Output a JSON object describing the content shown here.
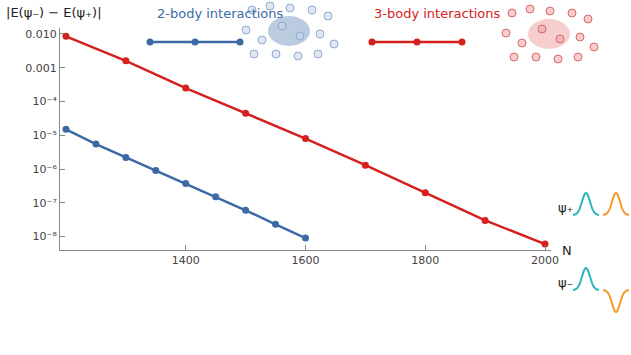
{
  "chart_data": {
    "type": "line",
    "log": "y",
    "grid": false,
    "marker": "circle",
    "x_label": "N",
    "y_label": "|E(ψ₋) − E(ψ₊)|",
    "annotations": [
      "ψ₊",
      "ψ₋"
    ],
    "xlim": [
      1190,
      2010
    ],
    "xticks": [
      1400,
      1600,
      1800,
      2000
    ],
    "ylim": [
      4e-09,
      0.015
    ],
    "yticks": [
      {
        "value": 0.01,
        "label": "0.010"
      },
      0.001,
      {
        "value": 0.0001,
        "label": "10⁻⁴"
      },
      {
        "value": 1e-05,
        "label": "10⁻⁵"
      },
      {
        "value": 1e-06,
        "label": "10⁻⁶"
      },
      {
        "value": 1e-07,
        "label": "10⁻⁷"
      },
      {
        "value": 1e-08,
        "label": "10⁻⁸"
      }
    ],
    "series": [
      {
        "name": "2-body interactions",
        "color": "#3d6aa5",
        "x": [
          1200,
          1250,
          1300,
          1350,
          1400,
          1450,
          1500,
          1550,
          1600
        ],
        "values": [
          1.5e-05,
          5.5e-06,
          2.2e-06,
          9e-07,
          3.7e-07,
          1.5e-07,
          6e-08,
          2.3e-08,
          9e-09
        ]
      },
      {
        "name": "3-body interactions",
        "color": "#d62020",
        "x": [
          1200,
          1300,
          1400,
          1500,
          1600,
          1700,
          1800,
          1900,
          2000
        ],
        "values": [
          0.0085,
          0.0016,
          0.00025,
          4.5e-05,
          8e-06,
          1.3e-06,
          2e-07,
          3e-08,
          6e-09
        ]
      }
    ]
  }
}
